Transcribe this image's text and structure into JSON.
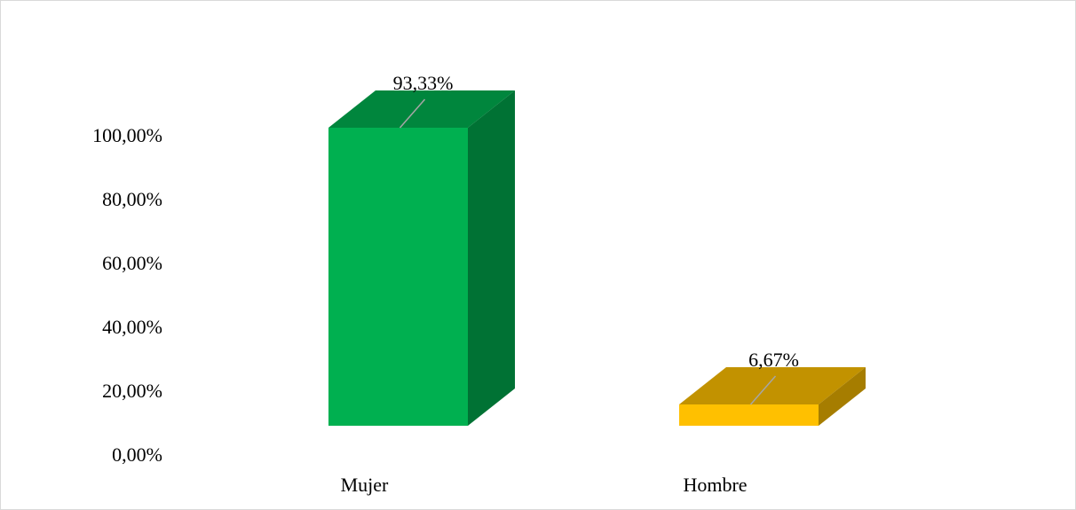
{
  "chart_data": {
    "type": "bar3d",
    "categories": [
      "Mujer",
      "Hombre"
    ],
    "values": [
      93.33,
      6.67
    ],
    "value_labels": [
      "93,33%",
      "6,67%"
    ],
    "colors": [
      "#00b050",
      "#ffc000"
    ],
    "ylim": [
      0,
      100
    ],
    "yticks": [
      {
        "value": 0,
        "label": "0,00%"
      },
      {
        "value": 20,
        "label": "20,00%"
      },
      {
        "value": 40,
        "label": "40,00%"
      },
      {
        "value": 60,
        "label": "60,00%"
      },
      {
        "value": 80,
        "label": "80,00%"
      },
      {
        "value": 100,
        "label": "100,00%"
      }
    ]
  }
}
